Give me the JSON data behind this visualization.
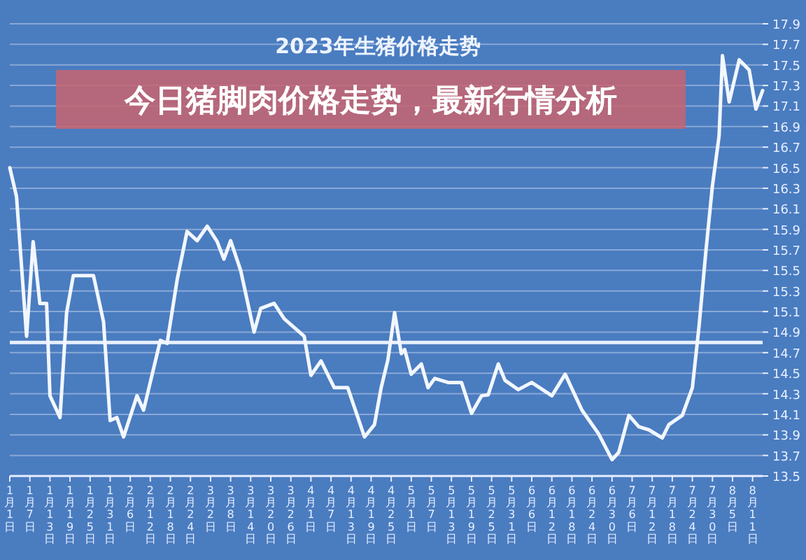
{
  "chart_data": {
    "type": "line",
    "title": "2023年生猪价格走势",
    "annotations": [
      "今日猪脚肉价格走势，最新行情分析"
    ],
    "x": [
      "--01-01",
      "--01-03",
      "--01-06",
      "--01-08",
      "--01-10",
      "--01-12",
      "--01-13",
      "--01-16",
      "--01-18",
      "--01-20",
      "--01-26",
      "--01-29",
      "--01-31",
      "--02-02",
      "--02-04",
      "--02-08",
      "--02-10",
      "--02-15",
      "--02-17",
      "--02-20",
      "--02-23",
      "--02-26",
      "--03-01",
      "--03-04",
      "--03-06",
      "--03-08",
      "--03-11",
      "--03-15",
      "--03-17",
      "--03-21",
      "--03-24",
      "--03-30",
      "--04-01",
      "--04-04",
      "--04-08",
      "--04-12",
      "--04-17",
      "--04-20",
      "--04-22",
      "--04-24",
      "--04-26",
      "--04-28",
      "--04-29",
      "--05-01",
      "--05-04",
      "--05-06",
      "--05-08",
      "--05-12",
      "--05-16",
      "--05-19",
      "--05-22",
      "--05-24",
      "--05-27",
      "--05-29",
      "--06-02",
      "--06-06",
      "--06-12",
      "--06-16",
      "--06-21",
      "--06-26",
      "--06-30",
      "--07-02",
      "--07-05",
      "--07-08",
      "--07-11",
      "--07-15",
      "--07-17",
      "--07-21",
      "--07-24",
      "--07-26",
      "--07-28",
      "--07-30",
      "--08-01",
      "--08-02",
      "--08-04",
      "--08-07",
      "--08-10",
      "--08-12",
      "--08-14"
    ],
    "series": [
      {
        "color": "#f2f7ff",
        "values": [
          16.5,
          16.22,
          14.86,
          15.78,
          15.18,
          15.18,
          14.28,
          14.07,
          15.09,
          15.45,
          15.45,
          15.0,
          14.04,
          14.07,
          13.88,
          14.28,
          14.14,
          14.82,
          14.79,
          15.41,
          15.88,
          15.79,
          15.93,
          15.78,
          15.61,
          15.79,
          15.5,
          14.9,
          15.13,
          15.18,
          15.03,
          14.86,
          14.48,
          14.62,
          14.36,
          14.36,
          13.88,
          14.0,
          14.36,
          14.63,
          15.09,
          14.69,
          14.73,
          14.49,
          14.59,
          14.36,
          14.45,
          14.41,
          14.41,
          14.11,
          14.28,
          14.29,
          14.59,
          14.43,
          14.34,
          14.41,
          14.28,
          14.49,
          14.14,
          13.91,
          13.66,
          13.73,
          14.09,
          13.98,
          13.95,
          13.87,
          14.0,
          14.09,
          14.36,
          14.96,
          15.68,
          16.32,
          16.81,
          17.59,
          17.14,
          17.55,
          17.45,
          17.07,
          17.25
        ]
      }
    ],
    "xlim": [
      "--01-01",
      "--08-14"
    ],
    "xticks": [
      {
        "value": "--01-01",
        "label": "1月1日"
      },
      {
        "value": "--01-07",
        "label": "1月7日"
      },
      {
        "value": "--01-13",
        "label": "1月13日"
      },
      {
        "value": "--01-19",
        "label": "1月19日"
      },
      {
        "value": "--01-25",
        "label": "1月25日"
      },
      {
        "value": "--01-31",
        "label": "1月31日"
      },
      {
        "value": "--02-06",
        "label": "2月6日"
      },
      {
        "value": "--02-12",
        "label": "2月12日"
      },
      {
        "value": "--02-18",
        "label": "2月18日"
      },
      {
        "value": "--02-24",
        "label": "2月24日"
      },
      {
        "value": "--03-02",
        "label": "3月2日"
      },
      {
        "value": "--03-08",
        "label": "3月8日"
      },
      {
        "value": "--03-14",
        "label": "3月14日"
      },
      {
        "value": "--03-20",
        "label": "3月20日"
      },
      {
        "value": "--03-26",
        "label": "3月26日"
      },
      {
        "value": "--04-01",
        "label": "4月1日"
      },
      {
        "value": "--04-07",
        "label": "4月7日"
      },
      {
        "value": "--04-13",
        "label": "4月13日"
      },
      {
        "value": "--04-19",
        "label": "4月19日"
      },
      {
        "value": "--04-25",
        "label": "4月25日"
      },
      {
        "value": "--05-01",
        "label": "5月1日"
      },
      {
        "value": "--05-07",
        "label": "5月7日"
      },
      {
        "value": "--05-13",
        "label": "5月13日"
      },
      {
        "value": "--05-19",
        "label": "5月19日"
      },
      {
        "value": "--05-25",
        "label": "5月25日"
      },
      {
        "value": "--05-31",
        "label": "5月31日"
      },
      {
        "value": "--06-06",
        "label": "6月6日"
      },
      {
        "value": "--06-12",
        "label": "6月12日"
      },
      {
        "value": "--06-18",
        "label": "6月18日"
      },
      {
        "value": "--06-24",
        "label": "6月24日"
      },
      {
        "value": "--06-30",
        "label": "6月30日"
      },
      {
        "value": "--07-06",
        "label": "7月6日"
      },
      {
        "value": "--07-12",
        "label": "7月12日"
      },
      {
        "value": "--07-18",
        "label": "7月18日"
      },
      {
        "value": "--07-24",
        "label": "7月24日"
      },
      {
        "value": "--07-30",
        "label": "7月30日"
      },
      {
        "value": "--08-05",
        "label": "8月5日"
      },
      {
        "value": "--08-11",
        "label": "8月11日"
      }
    ],
    "ylim": [
      13.5,
      17.9
    ],
    "yticks": [
      13.5,
      13.7,
      13.9,
      14.1,
      14.3,
      14.5,
      14.7,
      14.9,
      15.1,
      15.3,
      15.5,
      15.7,
      15.9,
      16.1,
      16.3,
      16.5,
      16.7,
      16.9,
      17.1,
      17.3,
      17.5,
      17.7,
      17.9
    ],
    "grid": "y",
    "ref_lines": [
      {
        "axis": "y",
        "value": 14.8,
        "color": "#e8f0ff"
      }
    ]
  }
}
